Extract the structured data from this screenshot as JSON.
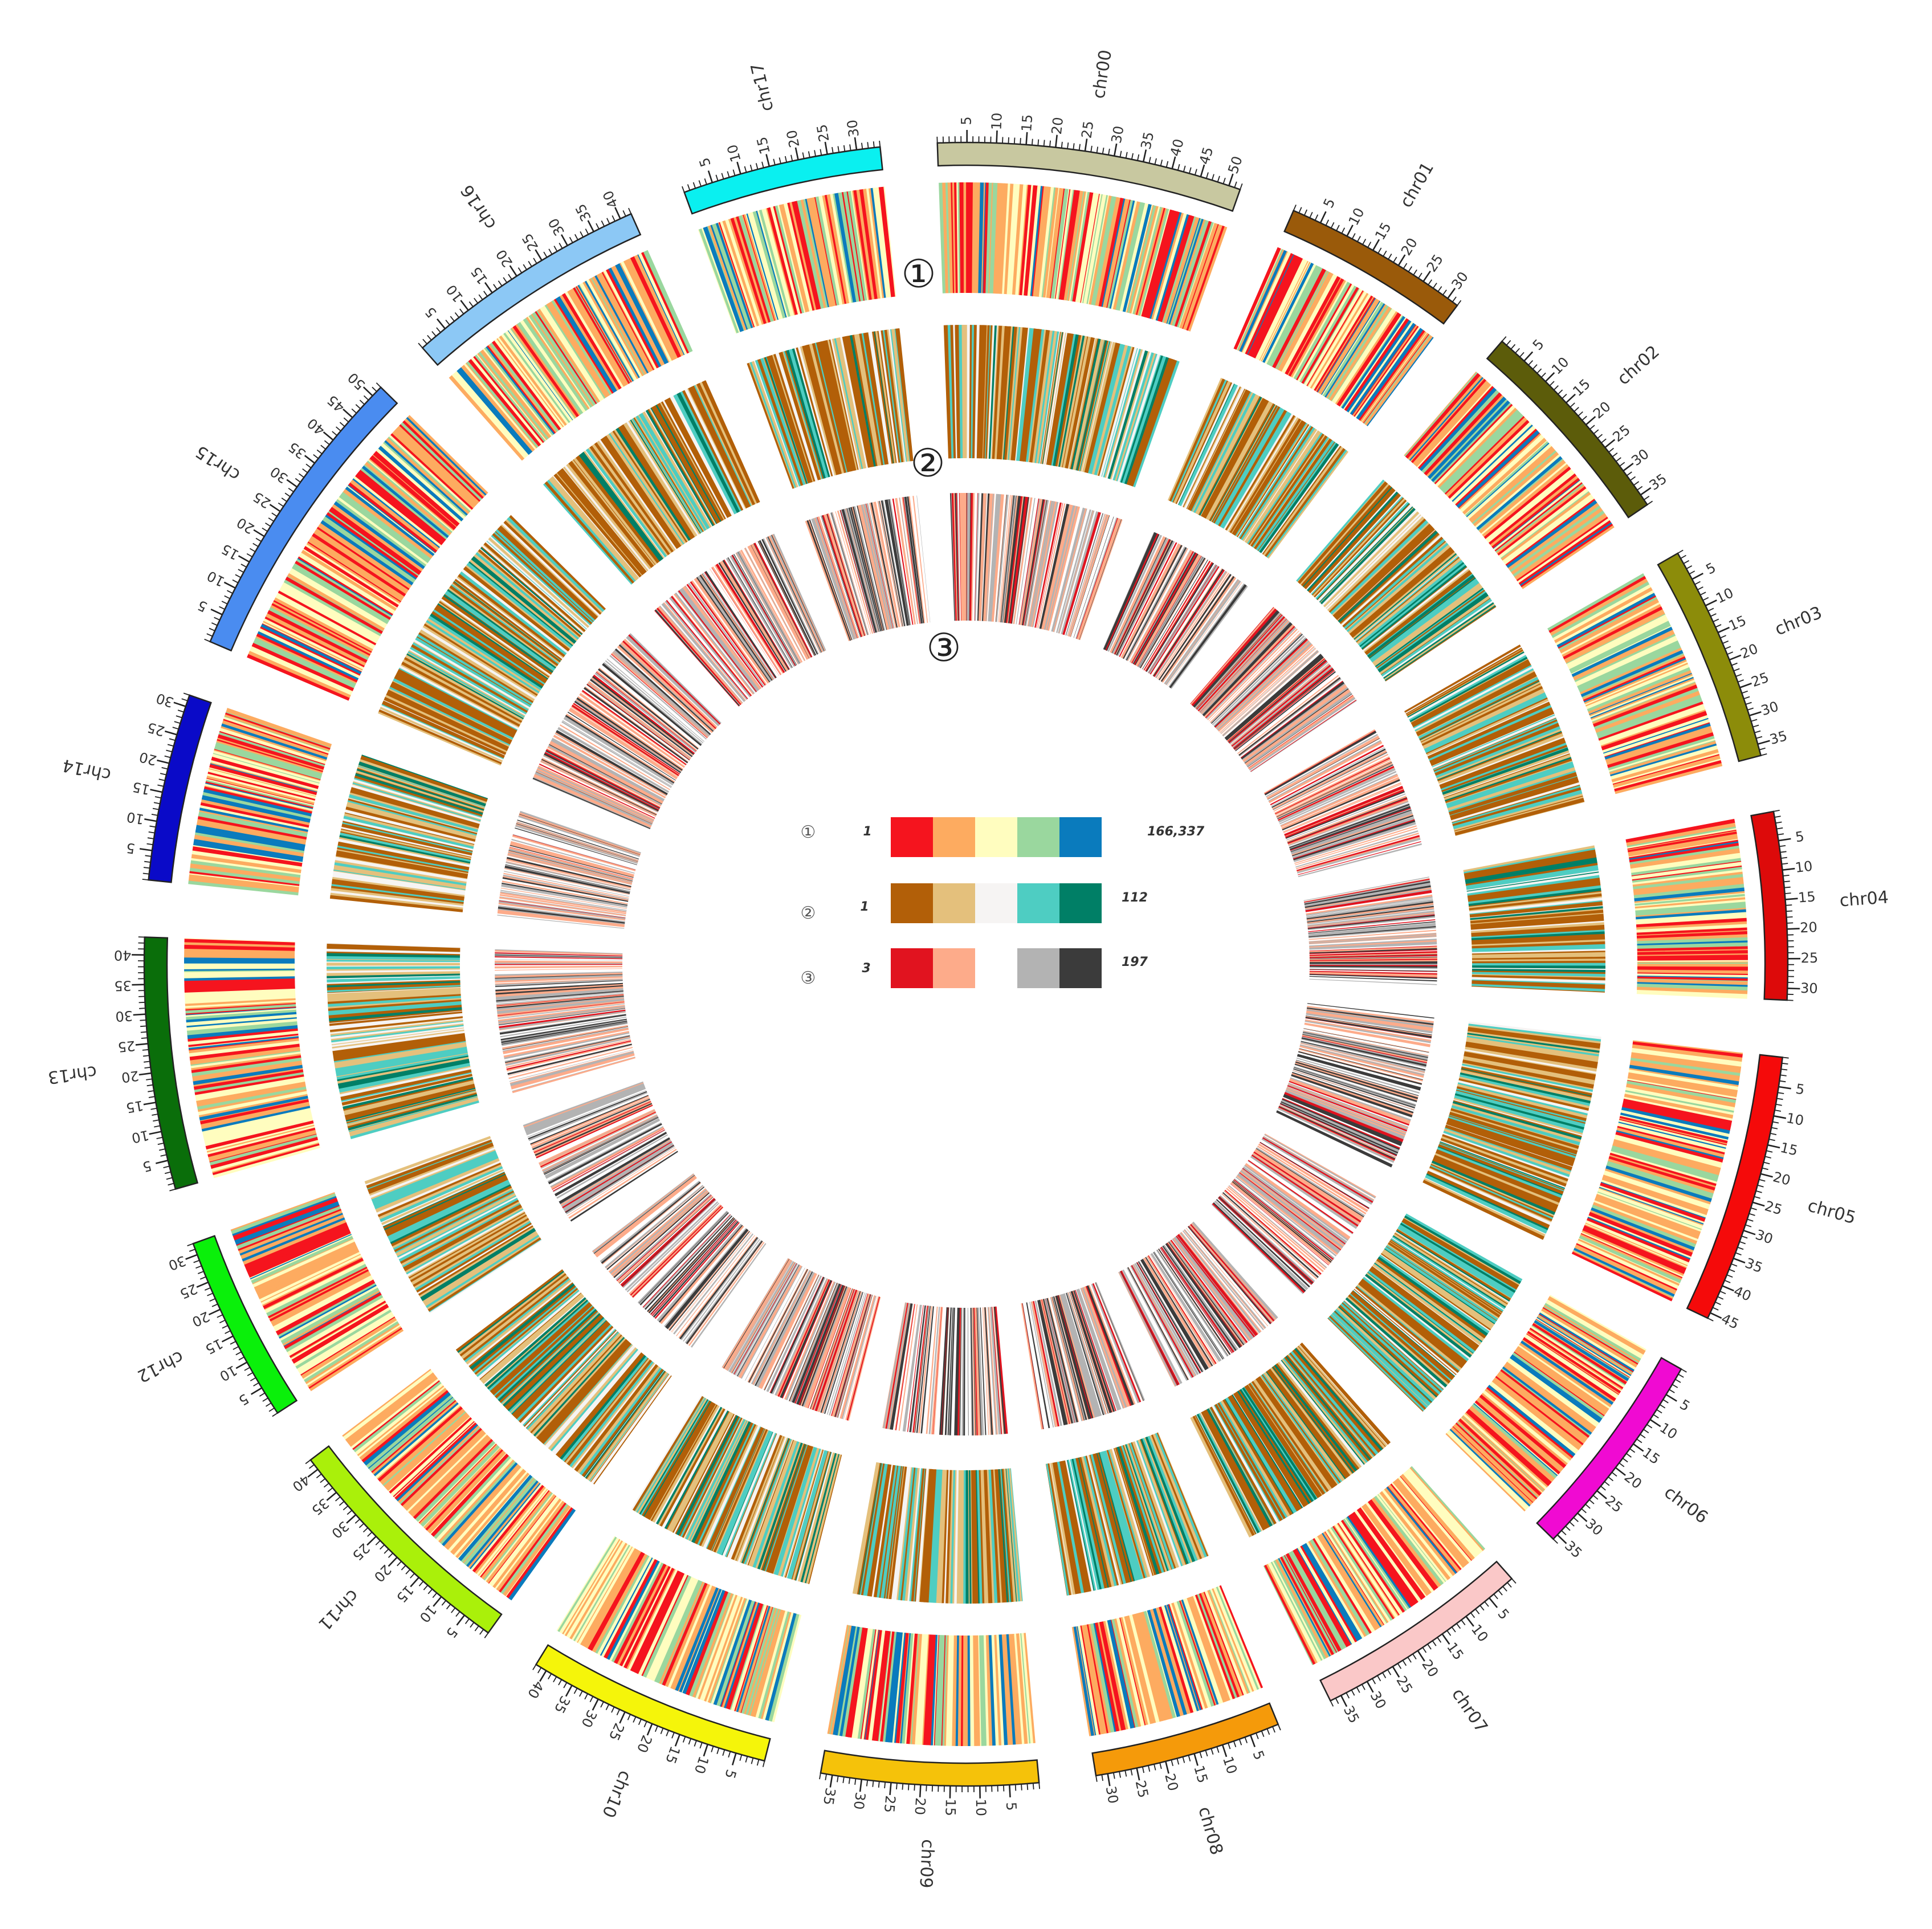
{
  "chromosomes": [
    {
      "name": "chr00",
      "length": 52,
      "color": "#c8c8a0",
      "ticks": [
        5,
        10,
        15,
        20,
        25,
        30,
        35,
        40,
        45,
        50
      ]
    },
    {
      "name": "chr01",
      "length": 32,
      "color": "#9a5a0a",
      "ticks": [
        5,
        10,
        15,
        20,
        25,
        30
      ]
    },
    {
      "name": "chr02",
      "length": 37,
      "color": "#5c5c0a",
      "ticks": [
        5,
        10,
        15,
        20,
        25,
        30,
        35
      ]
    },
    {
      "name": "chr03",
      "length": 37,
      "color": "#8c8c0a",
      "ticks": [
        5,
        10,
        15,
        20,
        25,
        30,
        35
      ]
    },
    {
      "name": "chr04",
      "length": 32,
      "color": "#dd0a0a",
      "ticks": [
        5,
        10,
        15,
        20,
        25,
        30
      ]
    },
    {
      "name": "chr05",
      "length": 46,
      "color": "#f50a0a",
      "ticks": [
        5,
        10,
        15,
        20,
        25,
        30,
        35,
        40,
        45
      ]
    },
    {
      "name": "chr06",
      "length": 36,
      "color": "#f00ad2",
      "ticks": [
        5,
        10,
        15,
        20,
        25,
        30,
        35
      ]
    },
    {
      "name": "chr07",
      "length": 37,
      "color": "#fac8c8",
      "ticks": [
        5,
        10,
        15,
        20,
        25,
        30,
        35
      ]
    },
    {
      "name": "chr08",
      "length": 32,
      "color": "#f59a0a",
      "ticks": [
        5,
        10,
        15,
        20,
        25,
        30
      ]
    },
    {
      "name": "chr09",
      "length": 37,
      "color": "#f5c20a",
      "ticks": [
        5,
        10,
        15,
        20,
        25,
        30,
        35
      ]
    },
    {
      "name": "chr10",
      "length": 42,
      "color": "#f5f50a",
      "ticks": [
        5,
        10,
        15,
        20,
        25,
        30,
        35,
        40
      ]
    },
    {
      "name": "chr11",
      "length": 42,
      "color": "#aaf00a",
      "ticks": [
        5,
        10,
        15,
        20,
        25,
        30,
        35,
        40
      ]
    },
    {
      "name": "chr12",
      "length": 32,
      "color": "#0af00a",
      "ticks": [
        5,
        10,
        15,
        20,
        25,
        30
      ]
    },
    {
      "name": "chr13",
      "length": 43,
      "color": "#0a6e0a",
      "ticks": [
        5,
        10,
        15,
        20,
        25,
        30,
        35,
        40
      ]
    },
    {
      "name": "chr14",
      "length": 32,
      "color": "#0a0ac8",
      "ticks": [
        5,
        10,
        15,
        20,
        25,
        30
      ]
    },
    {
      "name": "chr15",
      "length": 52,
      "color": "#4a8cf0",
      "ticks": [
        5,
        10,
        15,
        20,
        25,
        30,
        35,
        40,
        45,
        50
      ]
    },
    {
      "name": "chr16",
      "length": 42,
      "color": "#8cc8f5",
      "ticks": [
        5,
        10,
        15,
        20,
        25,
        30,
        35,
        40
      ]
    },
    {
      "name": "chr17",
      "length": 34,
      "color": "#0af0f0",
      "ticks": [
        5,
        10,
        15,
        20,
        25,
        30
      ]
    }
  ],
  "rings": [
    {
      "label": "①",
      "palette": [
        "#f5141e",
        "#fdab60",
        "#fffdbf",
        "#9ad79e",
        "#0a7bbd"
      ]
    },
    {
      "label": "②",
      "palette": [
        "#b25f08",
        "#e4c07c",
        "#f6f4f3",
        "#4ecdc2",
        "#007f66"
      ]
    },
    {
      "label": "③",
      "palette": [
        "#e1131f",
        "#fdab8a",
        "#ffffff",
        "#b3b3b3",
        "#3b3b3b"
      ]
    }
  ],
  "legend": [
    {
      "label": "①",
      "min": "1",
      "max": "166,337",
      "colors": [
        "#f5141e",
        "#fdab60",
        "#fffdbf",
        "#9ad79e",
        "#0a7bbd"
      ]
    },
    {
      "label": "②",
      "min": "1",
      "max": "112",
      "colors": [
        "#b25f08",
        "#e4c07c",
        "#f6f4f3",
        "#4ecdc2",
        "#007f66"
      ]
    },
    {
      "label": "③",
      "min": "3",
      "max": "197",
      "colors": [
        "#e1131f",
        "#fdab8a",
        "#ffffff",
        "#b3b3b3",
        "#3b3b3b"
      ]
    }
  ]
}
